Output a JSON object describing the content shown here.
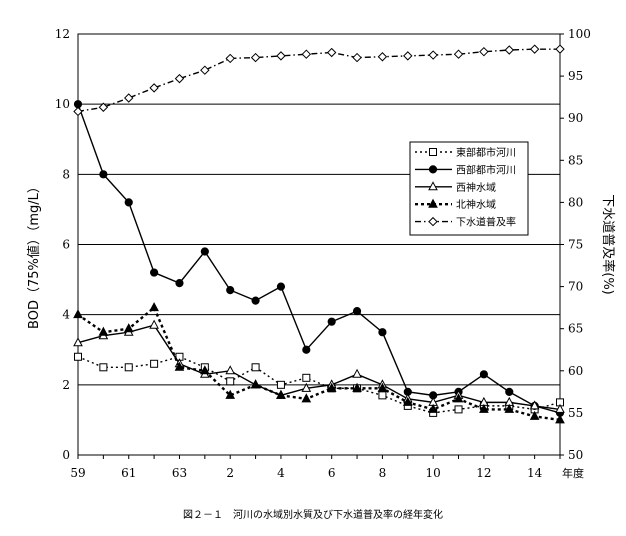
{
  "caption": "図２－１　河川の水域別水質及び下水道普及率の経年変化",
  "chart_data": {
    "type": "line",
    "x_categories": [
      "59",
      "60",
      "61",
      "62",
      "63",
      "1",
      "2",
      "3",
      "4",
      "5",
      "6",
      "7",
      "8",
      "9",
      "10",
      "11",
      "12",
      "13",
      "14",
      "15"
    ],
    "x_tick_labels": [
      "59",
      "61",
      "63",
      "2",
      "4",
      "6",
      "8",
      "10",
      "12",
      "14"
    ],
    "x_unit_label": "年度",
    "ylabel_left": "BOD（75%値）（mg/L）",
    "ylabel_right": "下水道普及率(%)",
    "ylim_left": [
      0,
      12
    ],
    "yticks_left": [
      "0",
      "2",
      "4",
      "6",
      "8",
      "10",
      "12"
    ],
    "ylim_right": [
      50,
      100
    ],
    "yticks_right": [
      "50",
      "55",
      "60",
      "65",
      "70",
      "75",
      "80",
      "85",
      "90",
      "95",
      "100"
    ],
    "gridlines": "horizontal at left-axis major ticks",
    "legend_position": "right-center",
    "series": [
      {
        "name": "東部都市河川",
        "axis": "left",
        "style": "dotted",
        "marker": "open-square",
        "color": "#000000",
        "values": [
          2.8,
          2.5,
          2.5,
          2.6,
          2.8,
          2.5,
          2.1,
          2.5,
          2.0,
          2.2,
          1.9,
          1.9,
          1.7,
          1.4,
          1.2,
          1.3,
          1.4,
          1.4,
          1.3,
          1.5
        ]
      },
      {
        "name": "西部都市河川",
        "axis": "left",
        "style": "solid",
        "marker": "filled-circle",
        "color": "#000000",
        "values": [
          10.0,
          8.0,
          7.2,
          5.2,
          4.9,
          5.8,
          4.7,
          4.4,
          4.8,
          3.0,
          3.8,
          4.1,
          3.5,
          1.8,
          1.7,
          1.8,
          2.3,
          1.8,
          1.4,
          1.2
        ]
      },
      {
        "name": "西神水域",
        "axis": "left",
        "style": "solid",
        "marker": "open-triangle",
        "color": "#000000",
        "values": [
          3.2,
          3.4,
          3.5,
          3.7,
          2.6,
          2.3,
          2.4,
          2.0,
          1.7,
          1.9,
          2.0,
          2.3,
          2.0,
          1.6,
          1.5,
          1.7,
          1.5,
          1.5,
          1.4,
          1.3
        ]
      },
      {
        "name": "北神水域",
        "axis": "left",
        "style": "dotted-bold",
        "marker": "filled-triangle",
        "color": "#000000",
        "values": [
          4.0,
          3.5,
          3.6,
          4.2,
          2.5,
          2.4,
          1.7,
          2.0,
          1.7,
          1.6,
          1.9,
          1.9,
          1.9,
          1.5,
          1.3,
          1.6,
          1.3,
          1.3,
          1.1,
          1.0
        ]
      },
      {
        "name": "下水道普及率",
        "axis": "right",
        "style": "dash-dot",
        "marker": "open-diamond",
        "color": "#000000",
        "values": [
          90.8,
          91.3,
          92.4,
          93.6,
          94.7,
          95.7,
          97.1,
          97.2,
          97.4,
          97.6,
          97.8,
          97.2,
          97.3,
          97.4,
          97.5,
          97.6,
          97.9,
          98.1,
          98.2,
          98.2
        ]
      }
    ]
  }
}
